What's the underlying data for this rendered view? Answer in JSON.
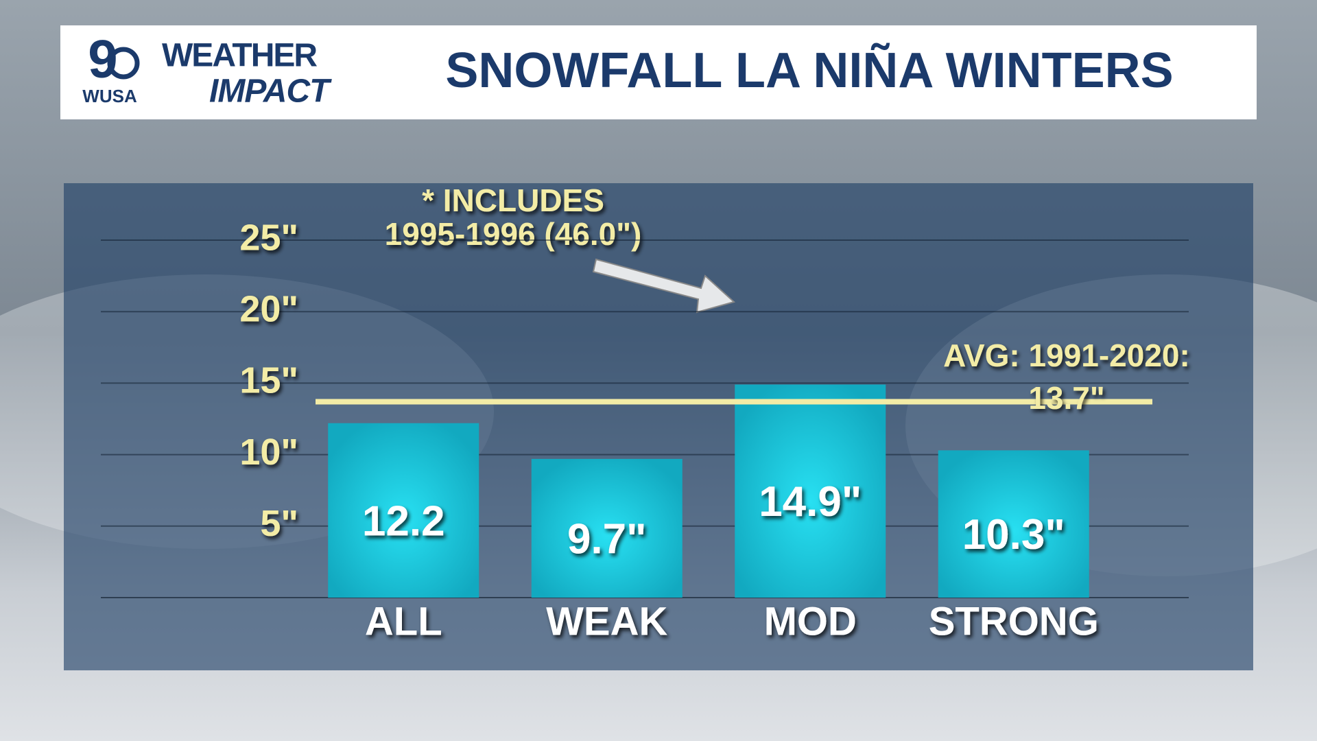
{
  "branding": {
    "channel": "9",
    "station": "WUSA",
    "brand_top": "WEATHER",
    "brand_bottom": "IMPACT"
  },
  "chart_data": {
    "type": "bar",
    "title": "SNOWFALL LA NIÑA WINTERS",
    "categories": [
      "ALL",
      "WEAK",
      "MOD",
      "STRONG"
    ],
    "values": [
      12.2,
      9.7,
      14.9,
      10.3
    ],
    "value_labels": [
      "12.2",
      "9.7\"",
      "14.9\"",
      "10.3\""
    ],
    "color": "#17b9cf",
    "ylim": [
      0,
      25
    ],
    "yticks": [
      {
        "value": 5,
        "label": "5\""
      },
      {
        "value": 10,
        "label": "10\""
      },
      {
        "value": 15,
        "label": "15\""
      },
      {
        "value": 20,
        "label": "20\""
      },
      {
        "value": 25,
        "label": "25\""
      }
    ],
    "grid": true,
    "reference_line": {
      "value": 13.7,
      "label_lines": [
        "AVG: 1991-2020:",
        "13.7\""
      ],
      "color": "#f3eca6"
    },
    "annotation_lines": [
      "* INCLUDES",
      "1995-1996 (46.0\")"
    ]
  }
}
